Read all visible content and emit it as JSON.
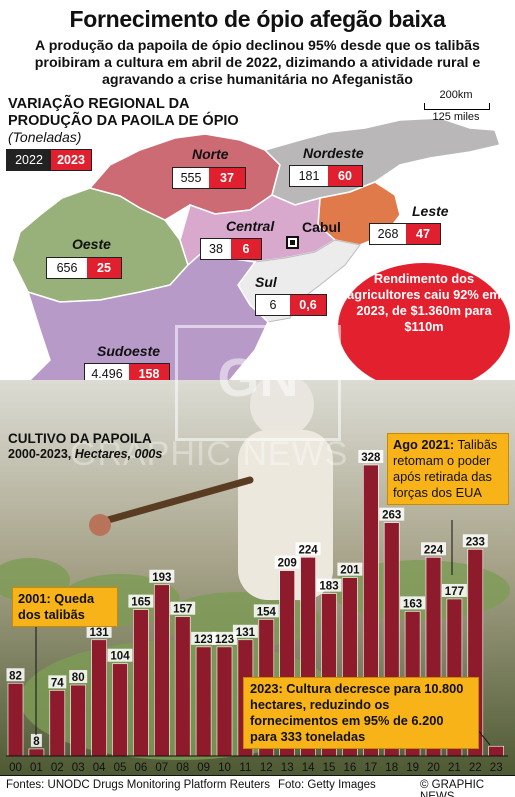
{
  "header": {
    "title": "Fornecimento de ópio afegão baixa",
    "subtitle": "A produção da papoila de ópio declinou 95% desde que os talibãs proibiram a cultura em abril de 2022, dizimando a atividade rural e agravando a crise humanitária no Afeganistão"
  },
  "map": {
    "title_line1": "VARIAÇÃO REGIONAL DA",
    "title_line2": "PRODUÇÃO DA PAOILA DE ÓPIO",
    "unit": "(Toneladas)",
    "legend": {
      "year_a": "2022",
      "year_b": "2023"
    },
    "scale": {
      "km": "200km",
      "miles": "125 miles"
    },
    "capital": "Cabul",
    "colors": {
      "norte": "#cc6b74",
      "nordeste": "#b9b7b8",
      "leste": "#e07a4a",
      "central": "#d8a9cd",
      "oeste": "#98b079",
      "sudoeste": "#b89ac9",
      "sul": "#ececec"
    },
    "regions": {
      "norte": {
        "name": "Norte",
        "v2022": "555",
        "v2023": "37"
      },
      "nordeste": {
        "name": "Nordeste",
        "v2022": "181",
        "v2023": "60"
      },
      "leste": {
        "name": "Leste",
        "v2022": "268",
        "v2023": "47"
      },
      "central": {
        "name": "Central",
        "v2022": "38",
        "v2023": "6"
      },
      "oeste": {
        "name": "Oeste",
        "v2022": "656",
        "v2023": "25"
      },
      "sul": {
        "name": "Sul",
        "v2022": "6",
        "v2023": "0,6"
      },
      "sudoeste": {
        "name": "Sudoeste",
        "v2022": "4.496",
        "v2023": "158"
      }
    }
  },
  "yield_note": "Rendimento dos agricultores caiu 92% em 2023, de $1.360m para $110m",
  "chart": {
    "title": "CULTIVO DA PAPOILA",
    "sub_years": "2000-2023,",
    "sub_unit": "Hectares, 000s",
    "bar_color": "#8e1b2c",
    "notes": {
      "taliban_fall_bold": "2001:",
      "taliban_fall_rest": " Queda dos talibãs",
      "aug2021_bold": "Ago 2021:",
      "aug2021_rest": " Talibãs retomam o poder após retirada das forças dos EUA",
      "y2023": "2023: Cultura decresce para 10.800 hectares, reduzindo os fornecimentos em 95% de 6.200 para 333 toneladas"
    }
  },
  "chart_data": {
    "type": "bar",
    "title": "CULTIVO DA PAPOILA",
    "ylabel": "Hectares, 000s",
    "categories": [
      "00",
      "01",
      "02",
      "03",
      "04",
      "05",
      "06",
      "07",
      "08",
      "09",
      "10",
      "11",
      "12",
      "13",
      "14",
      "15",
      "16",
      "17",
      "18",
      "19",
      "20",
      "21",
      "22",
      "23"
    ],
    "values": [
      82,
      8,
      74,
      80,
      131,
      104,
      165,
      193,
      157,
      123,
      123,
      131,
      154,
      209,
      224,
      183,
      201,
      328,
      263,
      163,
      224,
      177,
      233,
      11
    ],
    "labels": [
      "82",
      "8",
      "74",
      "80",
      "131",
      "104",
      "165",
      "193",
      "157",
      "123",
      "123",
      "131",
      "154",
      "209",
      "224",
      "183",
      "201",
      "328",
      "263",
      "163",
      "224",
      "177",
      "233",
      ""
    ],
    "ylim": [
      0,
      328
    ]
  },
  "footer": {
    "sources": "Fontes: UNODC Drugs Monitoring Platform Reuters",
    "photo": "Foto: Getty Images",
    "brand": "© GRAPHIC NEWS"
  },
  "watermark": {
    "mark": "GN",
    "text": "GRAPHIC NEWS"
  }
}
